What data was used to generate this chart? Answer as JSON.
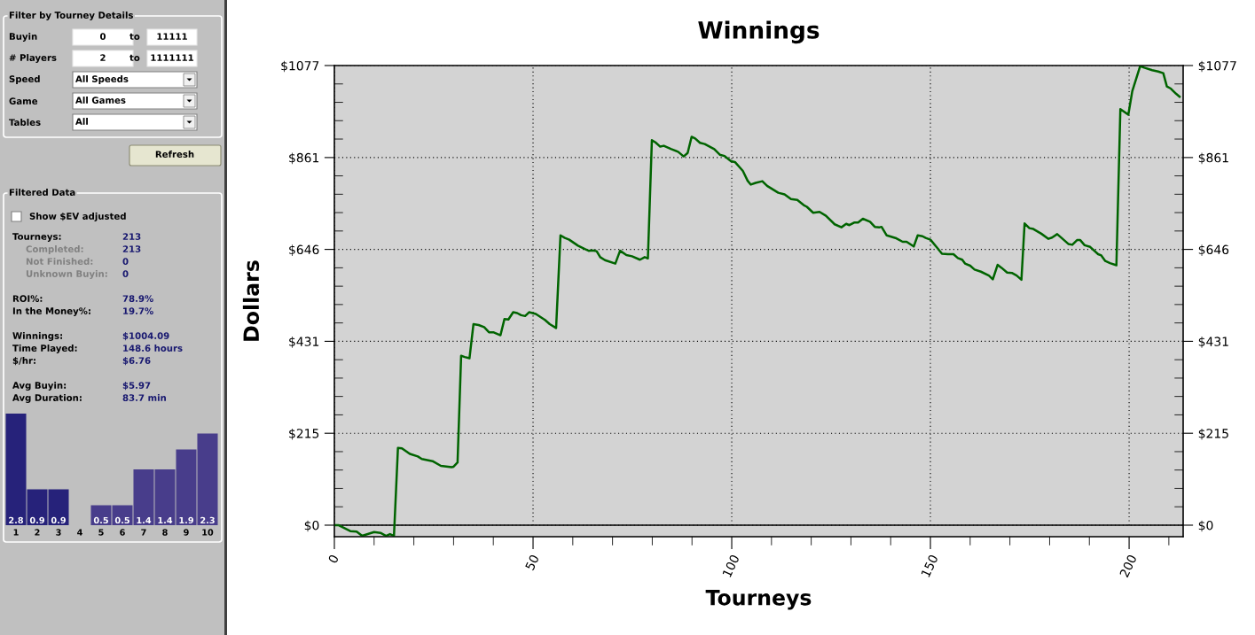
{
  "chart_data": [
    {
      "type": "other",
      "annotations": [
        "Filter by Tourney Details",
        "Buyin",
        "0",
        "to",
        "11111",
        "# Players",
        "2",
        "to",
        "1111111",
        "Speed",
        "All Speeds",
        "Game",
        "All Games",
        "Tables",
        "All",
        "Refresh",
        "Filtered Data",
        "Show $EV adjusted",
        "Tourneys:",
        "213",
        "Completed:",
        "213",
        "Not Finished:",
        "0",
        "Unknown Buyin:",
        "0",
        "ROI%:",
        "78.9%",
        "In the Money%:",
        "19.7%",
        "Winnings:",
        "$1004.09",
        "Time Played:",
        "148.6 hours",
        "$/hr:",
        "$6.76",
        "Avg Buyin:",
        "$5.97",
        "Avg Duration:",
        "83.7 min"
      ]
    },
    {
      "type": "bar",
      "categories": [
        "1",
        "2",
        "3",
        "4",
        "5",
        "6",
        "7",
        "8",
        "9",
        "10"
      ],
      "values": [
        2.8,
        0.9,
        0.9,
        0,
        0.5,
        0.5,
        1.4,
        1.4,
        1.9,
        2.3
      ],
      "value_labels": [
        "2.8",
        "0.9",
        "0.9",
        null,
        "0.5",
        "0.5",
        "1.4",
        "1.4",
        "1.9",
        "2.3"
      ],
      "colors": [
        "#26227a",
        "#26227a",
        "#26227a",
        "#483d8b",
        "#483d8b",
        "#483d8b",
        "#483d8b",
        "#483d8b",
        "#483d8b",
        "#483d8b"
      ]
    },
    {
      "type": "line",
      "title": "Winnings",
      "xlabel": "Tourneys",
      "ylabel": "Dollars",
      "grid": true,
      "marker": "none",
      "line_style": "solid",
      "xlim": [
        0,
        213.6
      ],
      "ylim": [
        -27,
        1077
      ],
      "y2lim": [
        -27,
        1077
      ],
      "xticks": [
        0,
        {
          "value": 10,
          "label": null
        },
        {
          "value": 20,
          "label": null
        },
        {
          "value": 30,
          "label": null
        },
        {
          "value": 40,
          "label": null
        },
        50,
        {
          "value": 60,
          "label": null
        },
        {
          "value": 70,
          "label": null
        },
        {
          "value": 80,
          "label": null
        },
        {
          "value": 90,
          "label": null
        },
        100,
        {
          "value": 110,
          "label": null
        },
        {
          "value": 120,
          "label": null
        },
        {
          "value": 130,
          "label": null
        },
        {
          "value": 140,
          "label": null
        },
        150,
        {
          "value": 160,
          "label": null
        },
        {
          "value": 170,
          "label": null
        },
        {
          "value": 180,
          "label": null
        },
        {
          "value": 190,
          "label": null
        },
        200,
        {
          "value": 210,
          "label": null
        }
      ],
      "yticks": [
        {
          "value": 0,
          "label": "$0"
        },
        {
          "value": 43.1,
          "label": null
        },
        {
          "value": 86.2,
          "label": null
        },
        {
          "value": 129.2,
          "label": null
        },
        {
          "value": 172.3,
          "label": null
        },
        {
          "value": 215.4,
          "label": "$215"
        },
        {
          "value": 258.5,
          "label": null
        },
        {
          "value": 301.6,
          "label": null
        },
        {
          "value": 344.6,
          "label": null
        },
        {
          "value": 387.7,
          "label": null
        },
        {
          "value": 430.8,
          "label": "$431"
        },
        {
          "value": 473.9,
          "label": null
        },
        {
          "value": 517,
          "label": null
        },
        {
          "value": 560,
          "label": null
        },
        {
          "value": 603.1,
          "label": null
        },
        {
          "value": 646.2,
          "label": "$646"
        },
        {
          "value": 689.3,
          "label": null
        },
        {
          "value": 732.4,
          "label": null
        },
        {
          "value": 775.4,
          "label": null
        },
        {
          "value": 818.5,
          "label": null
        },
        {
          "value": 861.4,
          "label": "$861"
        },
        {
          "value": 904.7,
          "label": null
        },
        {
          "value": 947.8,
          "label": null
        },
        {
          "value": 990.8,
          "label": null
        },
        {
          "value": 1033.9,
          "label": null
        },
        {
          "value": 1077,
          "label": "$1077"
        }
      ],
      "y2ticks": [
        {
          "value": 0,
          "label": "$0"
        },
        {
          "value": 43.1,
          "label": null
        },
        {
          "value": 86.2,
          "label": null
        },
        {
          "value": 129.2,
          "label": null
        },
        {
          "value": 172.3,
          "label": null
        },
        {
          "value": 215.4,
          "label": "$215"
        },
        {
          "value": 258.5,
          "label": null
        },
        {
          "value": 301.6,
          "label": null
        },
        {
          "value": 344.6,
          "label": null
        },
        {
          "value": 387.7,
          "label": null
        },
        {
          "value": 430.8,
          "label": "$431"
        },
        {
          "value": 473.9,
          "label": null
        },
        {
          "value": 517,
          "label": null
        },
        {
          "value": 560,
          "label": null
        },
        {
          "value": 603.1,
          "label": null
        },
        {
          "value": 646.2,
          "label": "$646"
        },
        {
          "value": 689.3,
          "label": null
        },
        {
          "value": 732.4,
          "label": null
        },
        {
          "value": 775.4,
          "label": null
        },
        {
          "value": 818.5,
          "label": null
        },
        {
          "value": 861.4,
          "label": "$861"
        },
        {
          "value": 904.7,
          "label": null
        },
        {
          "value": 947.8,
          "label": null
        },
        {
          "value": 990.8,
          "label": null
        },
        {
          "value": 1033.9,
          "label": null
        },
        {
          "value": 1077,
          "label": "$1077"
        }
      ],
      "ref_lines": [
        {
          "axis": "y",
          "value": 0,
          "color": "#000000",
          "line_style": "solid"
        }
      ],
      "series": [
        {
          "color": "#006400",
          "x": [
            0,
            1,
            4,
            5.6,
            7,
            10,
            11.6,
            13,
            14,
            15,
            16,
            17,
            19,
            21,
            22,
            24.7,
            26.8,
            29.5,
            30,
            31,
            31.9,
            32.8,
            34,
            35,
            36.3,
            37.7,
            38.9,
            40,
            41.8,
            42.8,
            43.8,
            45,
            46,
            47,
            48,
            49,
            50.7,
            53,
            54.2,
            55.8,
            56.9,
            58,
            59.1,
            61.3,
            63,
            64,
            65,
            66,
            66.9,
            68.1,
            70.7,
            71.9,
            73.5,
            74.9,
            76.9,
            78.1,
            78.9,
            79.9,
            80.8,
            82,
            82.9,
            84.8,
            86.5,
            87.9,
            88.9,
            89.9,
            90.8,
            92,
            93.2,
            95.6,
            97,
            98.2,
            99.8,
            100.8,
            102.8,
            104,
            104.8,
            106,
            107.7,
            108.9,
            111.7,
            113.3,
            114.9,
            116.5,
            118.1,
            118.9,
            120.5,
            122.1,
            123.7,
            125.9,
            127.6,
            128.8,
            129.6,
            130.8,
            131.8,
            133,
            134.8,
            136,
            137.2,
            137.7,
            139,
            141.2,
            143,
            144,
            145.8,
            146.8,
            148,
            148.8,
            150,
            151.6,
            152.9,
            154.4,
            155.8,
            156.9,
            158,
            158.7,
            160,
            161.1,
            162.7,
            164.7,
            165.7,
            166.9,
            167.9,
            169.3,
            170.5,
            171.7,
            172.9,
            173.7,
            174.9,
            175.9,
            177.9,
            179.7,
            180.6,
            181.9,
            183,
            184.7,
            185.7,
            186.9,
            187.7,
            188.8,
            190.2,
            192.2,
            193,
            194,
            195.2,
            196.8,
            197.8,
            199.8,
            200.8,
            202.8,
            203.8,
            205.8,
            207.3,
            208.6,
            209.5,
            210.5,
            211.8,
            212.7
          ],
          "values": [
            0,
            0,
            -14,
            -15,
            -25,
            -16,
            -18,
            -25,
            -21,
            -25,
            181,
            180,
            167,
            161,
            155,
            150,
            139,
            136,
            137,
            147,
            397,
            394,
            391,
            471,
            469,
            464,
            452,
            452,
            445,
            483,
            482,
            499,
            497,
            492,
            490,
            499,
            495,
            481,
            471,
            462,
            679,
            673,
            669,
            655,
            647,
            643,
            644,
            642,
            628,
            621,
            613,
            643,
            633,
            630,
            622,
            628,
            625,
            902,
            897,
            887,
            889,
            881,
            875,
            864,
            872,
            910,
            906,
            896,
            893,
            881,
            868,
            865,
            853,
            851,
            830,
            807,
            798,
            802,
            806,
            795,
            779,
            775,
            764,
            762,
            750,
            746,
            732,
            734,
            725,
            705,
            698,
            706,
            703,
            709,
            709,
            718,
            711,
            699,
            698,
            699,
            679,
            673,
            664,
            664,
            653,
            679,
            677,
            673,
            669,
            651,
            636,
            635,
            635,
            626,
            622,
            613,
            608,
            599,
            594,
            585,
            576,
            610,
            603,
            592,
            591,
            585,
            575,
            707,
            696,
            694,
            683,
            671,
            674,
            682,
            673,
            659,
            657,
            668,
            668,
            656,
            652,
            635,
            632,
            619,
            614,
            609,
            975,
            962,
            1017,
            1076,
            1072,
            1066,
            1063,
            1059,
            1028,
            1023,
            1011,
            1004
          ]
        }
      ]
    }
  ]
}
